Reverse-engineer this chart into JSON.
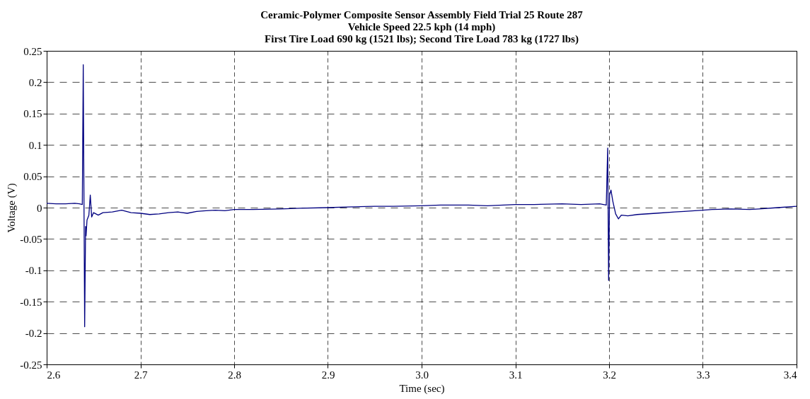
{
  "chart_data": {
    "type": "line",
    "title": "Ceramic-Polymer Composite Sensor Assembly Field Trial 25 Route 287\nVehicle Speed 22.5 kph (14 mph)\nFirst Tire Load 690 kg (1521 lbs); Second Tire Load 783 kg (1727 lbs)",
    "xlabel": "Time (sec)",
    "ylabel": "Voltage (V)",
    "series": [
      {
        "color": "#000080",
        "x": [
          2.6,
          2.61,
          2.62,
          2.63,
          2.635,
          2.638,
          2.639,
          2.6405,
          2.6415,
          2.642,
          2.643,
          2.645,
          2.6465,
          2.648,
          2.65,
          2.655,
          2.66,
          2.67,
          2.68,
          2.69,
          2.7,
          2.71,
          2.72,
          2.73,
          2.74,
          2.75,
          2.76,
          2.77,
          2.78,
          2.79,
          2.8,
          2.82,
          2.85,
          2.87,
          2.9,
          2.92,
          2.95,
          2.97,
          3.0,
          3.02,
          3.05,
          3.07,
          3.1,
          3.12,
          3.15,
          3.17,
          3.19,
          3.197,
          3.1985,
          3.1995,
          3.2005,
          3.202,
          3.204,
          3.207,
          3.21,
          3.213,
          3.22,
          3.23,
          3.25,
          3.27,
          3.28,
          3.3,
          3.31,
          3.33,
          3.35,
          3.36,
          3.38,
          3.4
        ],
        "values": [
          0.007,
          0.006,
          0.006,
          0.007,
          0.006,
          0.005,
          0.228,
          -0.19,
          -0.03,
          -0.045,
          -0.02,
          -0.012,
          0.02,
          -0.015,
          -0.008,
          -0.012,
          -0.008,
          -0.007,
          -0.004,
          -0.008,
          -0.009,
          -0.011,
          -0.01,
          -0.008,
          -0.007,
          -0.009,
          -0.006,
          -0.005,
          -0.004,
          -0.005,
          -0.003,
          -0.003,
          -0.002,
          -0.001,
          0.0,
          0.001,
          0.002,
          0.002,
          0.003,
          0.004,
          0.004,
          0.003,
          0.005,
          0.005,
          0.006,
          0.005,
          0.006,
          0.004,
          0.095,
          -0.116,
          0.02,
          0.028,
          0.01,
          -0.01,
          -0.018,
          -0.012,
          -0.013,
          -0.011,
          -0.009,
          -0.007,
          -0.006,
          -0.004,
          -0.003,
          -0.002,
          -0.003,
          -0.002,
          0.0,
          0.002
        ]
      }
    ],
    "xlim": [
      2.6,
      3.4
    ],
    "xticks": [
      2.6,
      2.7,
      2.8,
      2.9,
      {
        "value": 3.0,
        "label": "3.0"
      },
      3.1,
      3.2,
      3.3,
      3.4
    ],
    "ylim": [
      -0.25,
      0.25
    ],
    "yticks": [
      -0.25,
      -0.2,
      -0.15,
      -0.1,
      -0.05,
      0,
      0.05,
      0.1,
      0.15,
      0.2,
      0.25
    ],
    "grid": true,
    "line_style": "solid",
    "marker": "none"
  }
}
